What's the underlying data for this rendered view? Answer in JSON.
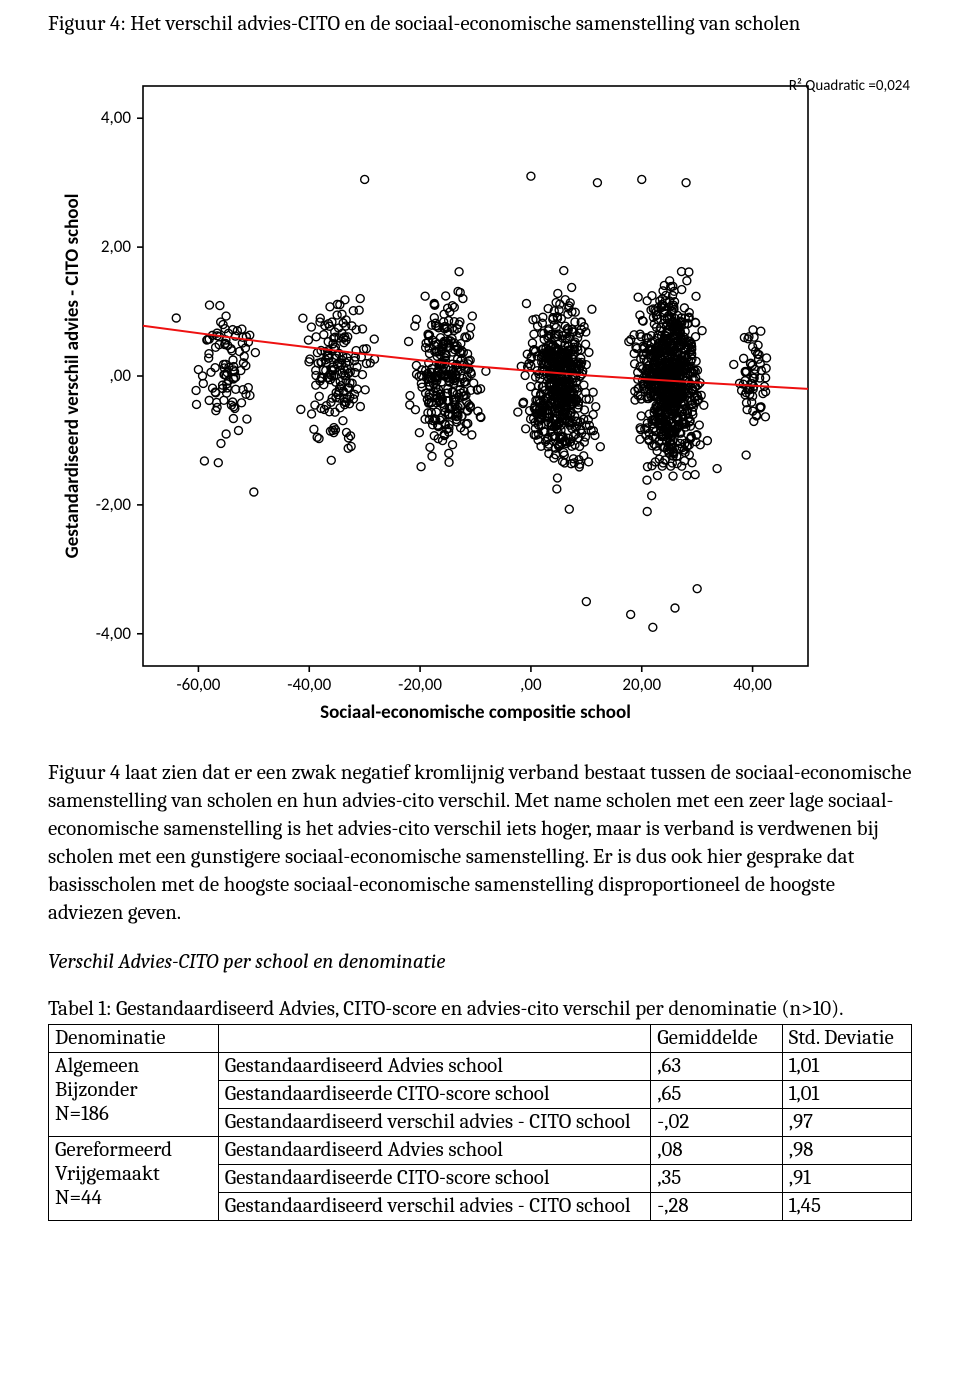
{
  "figure": {
    "title": "Figuur 4: Het verschil advies-CITO en de sociaal-economische samenstelling van scholen",
    "annotation": "R² Quadratic =0,024",
    "chart": {
      "type": "scatter",
      "xlabel": "Sociaal-economische compositie school",
      "ylabel": "Gestandardiseerd verschil advies - CITO school",
      "xlim": [
        -70,
        50
      ],
      "ylim": [
        -4.5,
        4.5
      ],
      "xticks": [
        -60,
        -40,
        -20,
        0,
        20,
        40
      ],
      "xtick_labels": [
        "-60,00",
        "-40,00",
        "-20,00",
        ",00",
        "20,00",
        "40,00"
      ],
      "yticks": [
        -4,
        -2,
        0,
        2,
        4
      ],
      "ytick_labels": [
        "-4,00",
        "-2,00",
        ",00",
        "2,00",
        "4,00"
      ],
      "background_color": "#ffffff",
      "border_color": "#000000",
      "tick_length": 6,
      "label_fontsize": 17,
      "axislabel_fontsize": 19,
      "marker": {
        "shape": "circle",
        "radius": 4,
        "stroke": "#000000",
        "stroke_width": 1.4,
        "fill": "none"
      },
      "fit_curve": {
        "color": "#ee1111",
        "width": 2,
        "points": [
          [
            -70,
            0.78
          ],
          [
            -50,
            0.55
          ],
          [
            -30,
            0.34
          ],
          [
            -10,
            0.15
          ],
          [
            10,
            0.01
          ],
          [
            30,
            -0.1
          ],
          [
            50,
            -0.2
          ]
        ]
      },
      "cluster_boxes": [
        {
          "x_range": [
            -65,
            -45
          ],
          "y_range": [
            -2.2,
            2.3
          ],
          "n": 90
        },
        {
          "x_range": [
            -45,
            -25
          ],
          "y_range": [
            -2.4,
            2.6
          ],
          "n": 160
        },
        {
          "x_range": [
            -25,
            -5
          ],
          "y_range": [
            -2.6,
            2.6
          ],
          "n": 300
        },
        {
          "x_range": [
            -5,
            15
          ],
          "y_range": [
            -2.8,
            2.6
          ],
          "n": 550
        },
        {
          "x_range": [
            15,
            35
          ],
          "y_range": [
            -3.1,
            2.9
          ],
          "n": 800
        },
        {
          "x_range": [
            35,
            45
          ],
          "y_range": [
            -2.0,
            2.0
          ],
          "n": 60
        }
      ],
      "outliers": [
        [
          -60,
          0.1
        ],
        [
          -58,
          1.1
        ],
        [
          -55,
          -0.9
        ],
        [
          -52,
          0.6
        ],
        [
          -50,
          -1.8
        ],
        [
          -64,
          0.9
        ],
        [
          10,
          -3.5
        ],
        [
          18,
          -3.7
        ],
        [
          22,
          -3.9
        ],
        [
          26,
          -3.6
        ],
        [
          30,
          -3.3
        ],
        [
          -30,
          3.05
        ],
        [
          0,
          3.1
        ],
        [
          12,
          3.0
        ],
        [
          20,
          3.05
        ],
        [
          28,
          3.0
        ]
      ]
    }
  },
  "paragraph": "Figuur 4 laat zien dat er een zwak negatief kromlijnig verband bestaat tussen de sociaal-economische samenstelling van scholen en hun advies-cito verschil. Met name scholen met een zeer lage sociaal-economische samenstelling is het advies-cito verschil iets hoger, maar is verband is verdwenen bij scholen met een gunstigere sociaal-economische samenstelling. Er is dus ook hier gesprake dat basisscholen met de hoogste sociaal-economische samenstelling disproportioneel de hoogste adviezen geven.",
  "subheading": "Verschil Advies-CITO per school en denominatie",
  "table": {
    "title": "Tabel 1: Gestandaardiseerd Advies, CITO-score en advies-cito verschil per denominatie (n>10).",
    "headers": {
      "c1": "Denominatie",
      "c2": "",
      "c3": "Gemiddelde",
      "c4": "Std. Deviatie"
    },
    "groups": [
      {
        "label_lines": [
          "Algemeen",
          "Bijzonder",
          "N=186"
        ],
        "rows": [
          {
            "metric": "Gestandaardiseerd Advies school",
            "mean": ",63",
            "sd": "1,01"
          },
          {
            "metric": "Gestandaardiseerde CITO-score school",
            "mean": ",65",
            "sd": "1,01"
          },
          {
            "metric": "Gestandaardiseerd verschil advies - CITO school",
            "mean": "-,02",
            "sd": ",97"
          }
        ]
      },
      {
        "label_lines": [
          "Gereformeerd",
          "Vrijgemaakt",
          "N=44"
        ],
        "rows": [
          {
            "metric": "Gestandaardiseerd Advies school",
            "mean": ",08",
            "sd": ",98"
          },
          {
            "metric": "Gestandaardiseerde CITO-score school",
            "mean": ",35",
            "sd": ",91"
          },
          {
            "metric": "Gestandaardiseerd verschil advies - CITO school",
            "mean": "-,28",
            "sd": "1,45"
          }
        ]
      }
    ]
  }
}
